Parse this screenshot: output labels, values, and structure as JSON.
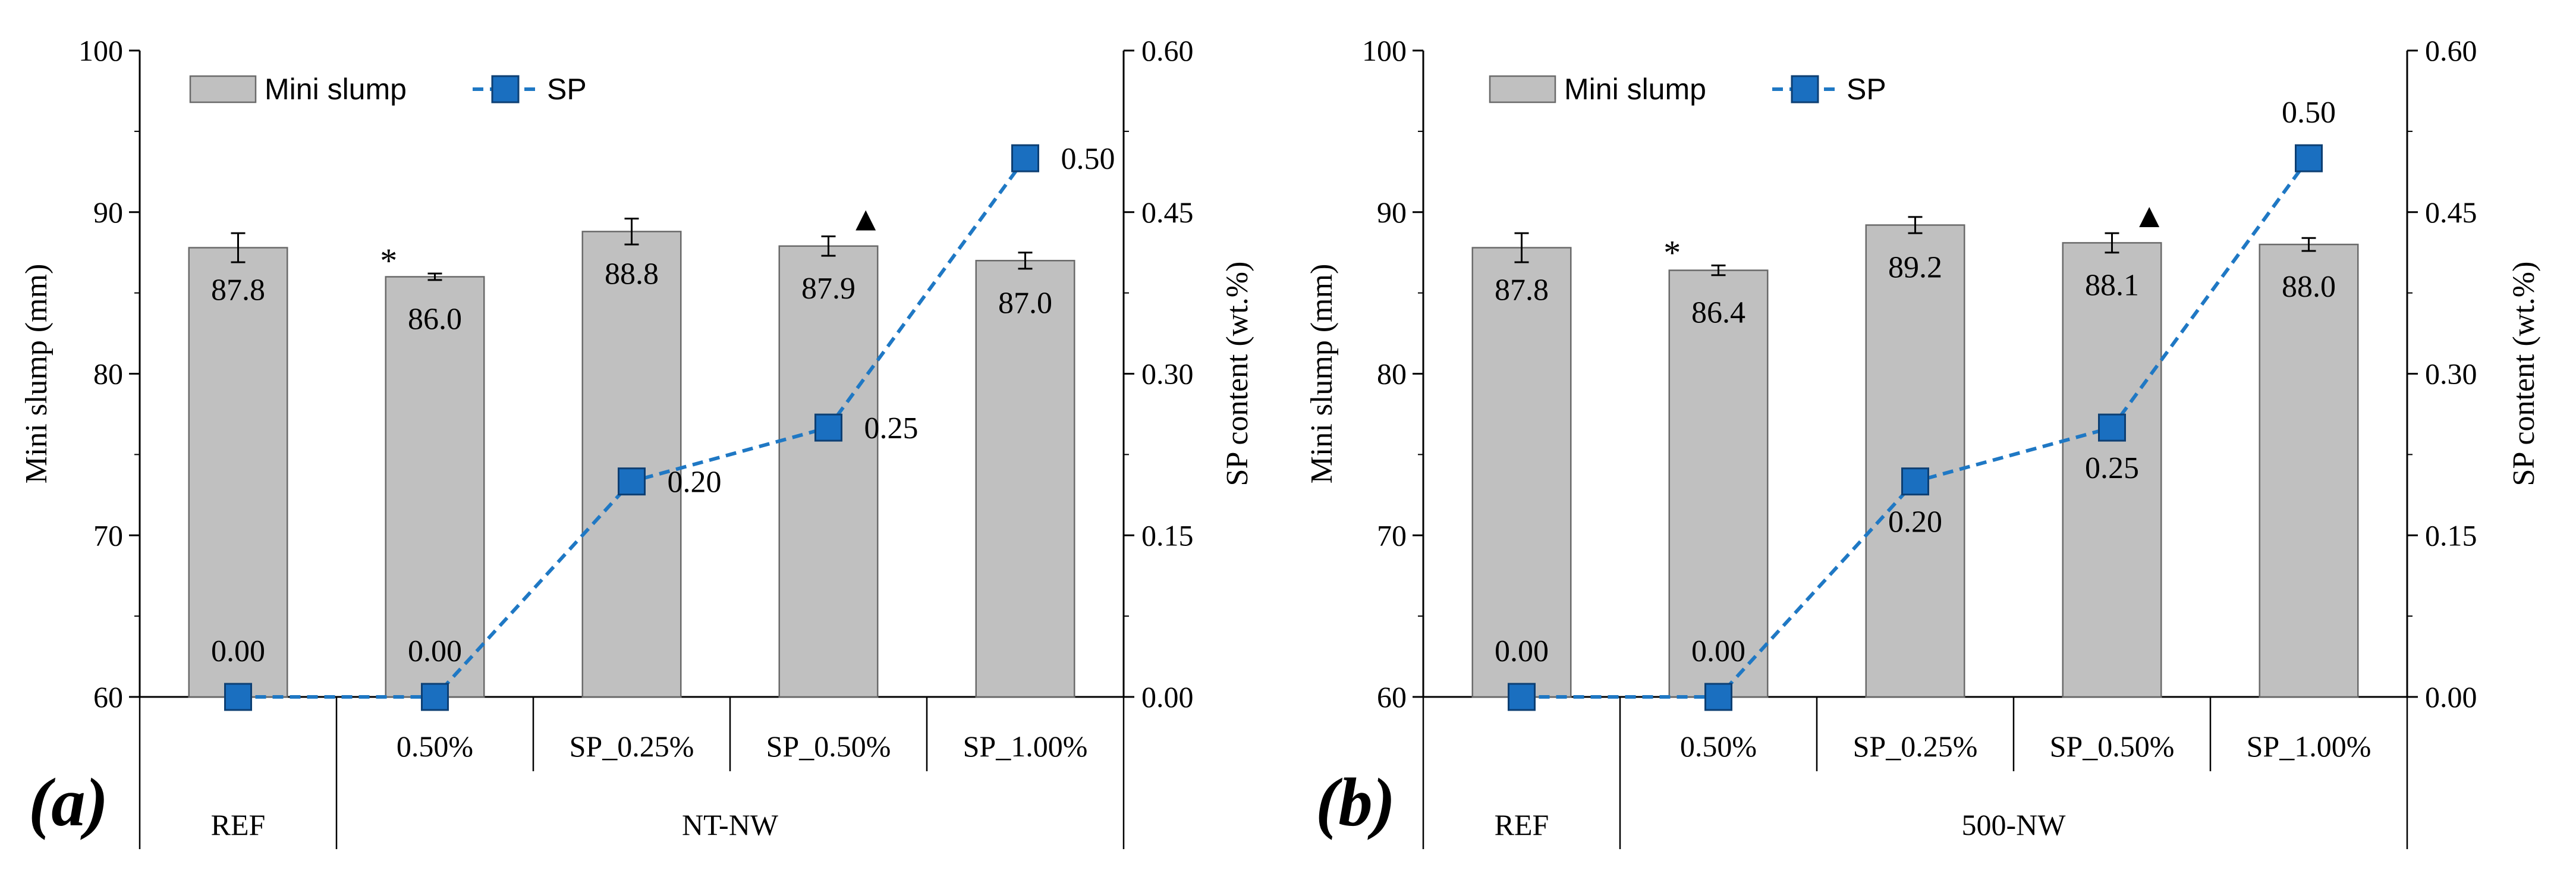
{
  "chart_data": [
    {
      "type": "bar",
      "panel": "(a)",
      "y_left_label": "Mini slump (mm)",
      "y_right_label": "SP content (wt.%)",
      "y_left_ylim": [
        60,
        100
      ],
      "y_left_ticks": [
        "60",
        "70",
        "80",
        "90",
        "100"
      ],
      "y_right_ylim": [
        0.0,
        0.6
      ],
      "y_right_ticks": [
        "0.00",
        "0.15",
        "0.30",
        "0.45",
        "0.60"
      ],
      "legend": {
        "placement": "top-left",
        "bar_name": "Mini slump",
        "line_name": "SP"
      },
      "categories": [
        "",
        "0.50%",
        "SP_0.25%",
        "SP_0.50%",
        "SP_1.00%"
      ],
      "groups": [
        {
          "label": "REF",
          "span": [
            0,
            0
          ]
        },
        {
          "label": "NT-NW",
          "span": [
            1,
            4
          ]
        }
      ],
      "series": [
        {
          "name": "Mini slump",
          "kind": "bar",
          "axis": "left",
          "values": [
            87.8,
            86.0,
            88.8,
            87.9,
            87.0
          ],
          "labels": [
            "87.8",
            "86.0",
            "88.8",
            "87.9",
            "87.0"
          ],
          "error": [
            0.9,
            0.2,
            0.8,
            0.6,
            0.5
          ],
          "annotations": [
            "",
            "*",
            "",
            "▲",
            ""
          ]
        },
        {
          "name": "SP",
          "kind": "line",
          "axis": "right",
          "values": [
            0.0,
            0.0,
            0.2,
            0.25,
            0.5
          ],
          "labels": [
            "0.00",
            "0.00",
            "0.20",
            "0.25",
            "0.50"
          ],
          "label_pos": [
            "above",
            "above",
            "right",
            "right",
            "right"
          ]
        }
      ],
      "colors": {
        "bar_fill": "#c0c0c0",
        "bar_stroke": "#6a6a6a",
        "line": "#1f78c4",
        "marker": "#1a6fc0"
      }
    },
    {
      "type": "bar",
      "panel": "(b)",
      "y_left_label": "Mini slump (mm)",
      "y_right_label": "SP content (wt.%)",
      "y_left_ylim": [
        60,
        100
      ],
      "y_left_ticks": [
        "60",
        "70",
        "80",
        "90",
        "100"
      ],
      "y_right_ylim": [
        0.0,
        0.6
      ],
      "y_right_ticks": [
        "0.00",
        "0.15",
        "0.30",
        "0.45",
        "0.60"
      ],
      "legend": {
        "placement": "top-left",
        "bar_name": "Mini slump",
        "line_name": "SP"
      },
      "categories": [
        "",
        "0.50%",
        "SP_0.25%",
        "SP_0.50%",
        "SP_1.00%"
      ],
      "groups": [
        {
          "label": "REF",
          "span": [
            0,
            0
          ]
        },
        {
          "label": "500-NW",
          "span": [
            1,
            4
          ]
        }
      ],
      "series": [
        {
          "name": "Mini slump",
          "kind": "bar",
          "axis": "left",
          "values": [
            87.8,
            86.4,
            89.2,
            88.1,
            88.0
          ],
          "labels": [
            "87.8",
            "86.4",
            "89.2",
            "88.1",
            "88.0"
          ],
          "error": [
            0.9,
            0.3,
            0.5,
            0.6,
            0.4
          ],
          "annotations": [
            "",
            "*",
            "",
            "▲",
            ""
          ]
        },
        {
          "name": "SP",
          "kind": "line",
          "axis": "right",
          "values": [
            0.0,
            0.0,
            0.2,
            0.25,
            0.5
          ],
          "labels": [
            "0.00",
            "0.00",
            "0.20",
            "0.25",
            "0.50"
          ],
          "label_pos": [
            "above",
            "above",
            "below",
            "below",
            "above"
          ]
        }
      ],
      "colors": {
        "bar_fill": "#c0c0c0",
        "bar_stroke": "#6a6a6a",
        "line": "#1f78c4",
        "marker": "#1a6fc0"
      }
    }
  ]
}
